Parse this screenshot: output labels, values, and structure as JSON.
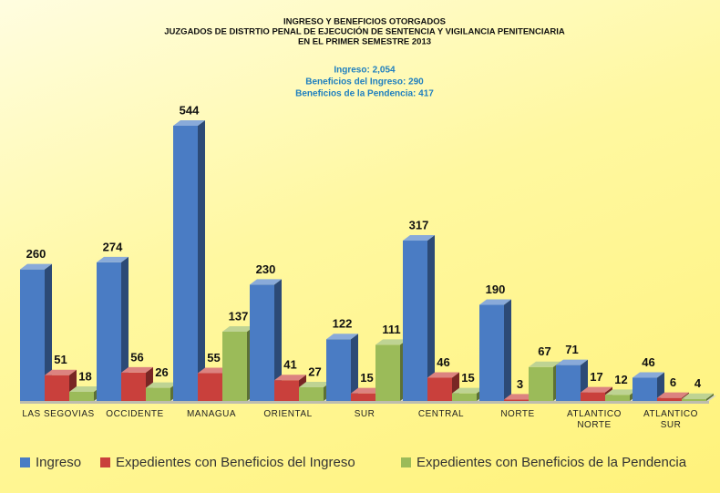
{
  "chart_data": {
    "type": "bar3d",
    "title": [
      "INGRESO Y BENEFICIOS OTORGADOS",
      "JUZGADOS DE DISTRTIO PENAL DE EJECUCIÓN DE SENTENCIA Y VIGILANCIA PENITENCIARIA",
      "EN EL PRIMER SEMESTRE 2013"
    ],
    "subtitle": [
      "Ingreso: 2,054",
      "Beneficios del Ingreso: 290",
      "Beneficios de la Pendencia: 417"
    ],
    "categories": [
      "LAS SEGOVIAS",
      "OCCIDENTE",
      "MANAGUA",
      "ORIENTAL",
      "SUR",
      "CENTRAL",
      "NORTE",
      "ATLANTICO NORTE",
      "ATLANTICO SUR"
    ],
    "series": [
      {
        "name": "Ingreso",
        "color": "#4a7cc4",
        "values": [
          260,
          274,
          544,
          230,
          122,
          317,
          190,
          71,
          46
        ]
      },
      {
        "name": "Expedientes con Beneficios del Ingreso",
        "color": "#c9403c",
        "values": [
          51,
          56,
          55,
          41,
          15,
          46,
          3,
          17,
          6
        ]
      },
      {
        "name": "Expedientes con Beneficios de la Pendencia",
        "color": "#9bbb59",
        "values": [
          18,
          26,
          137,
          27,
          111,
          15,
          67,
          12,
          4
        ]
      }
    ],
    "legend": "bottom"
  }
}
